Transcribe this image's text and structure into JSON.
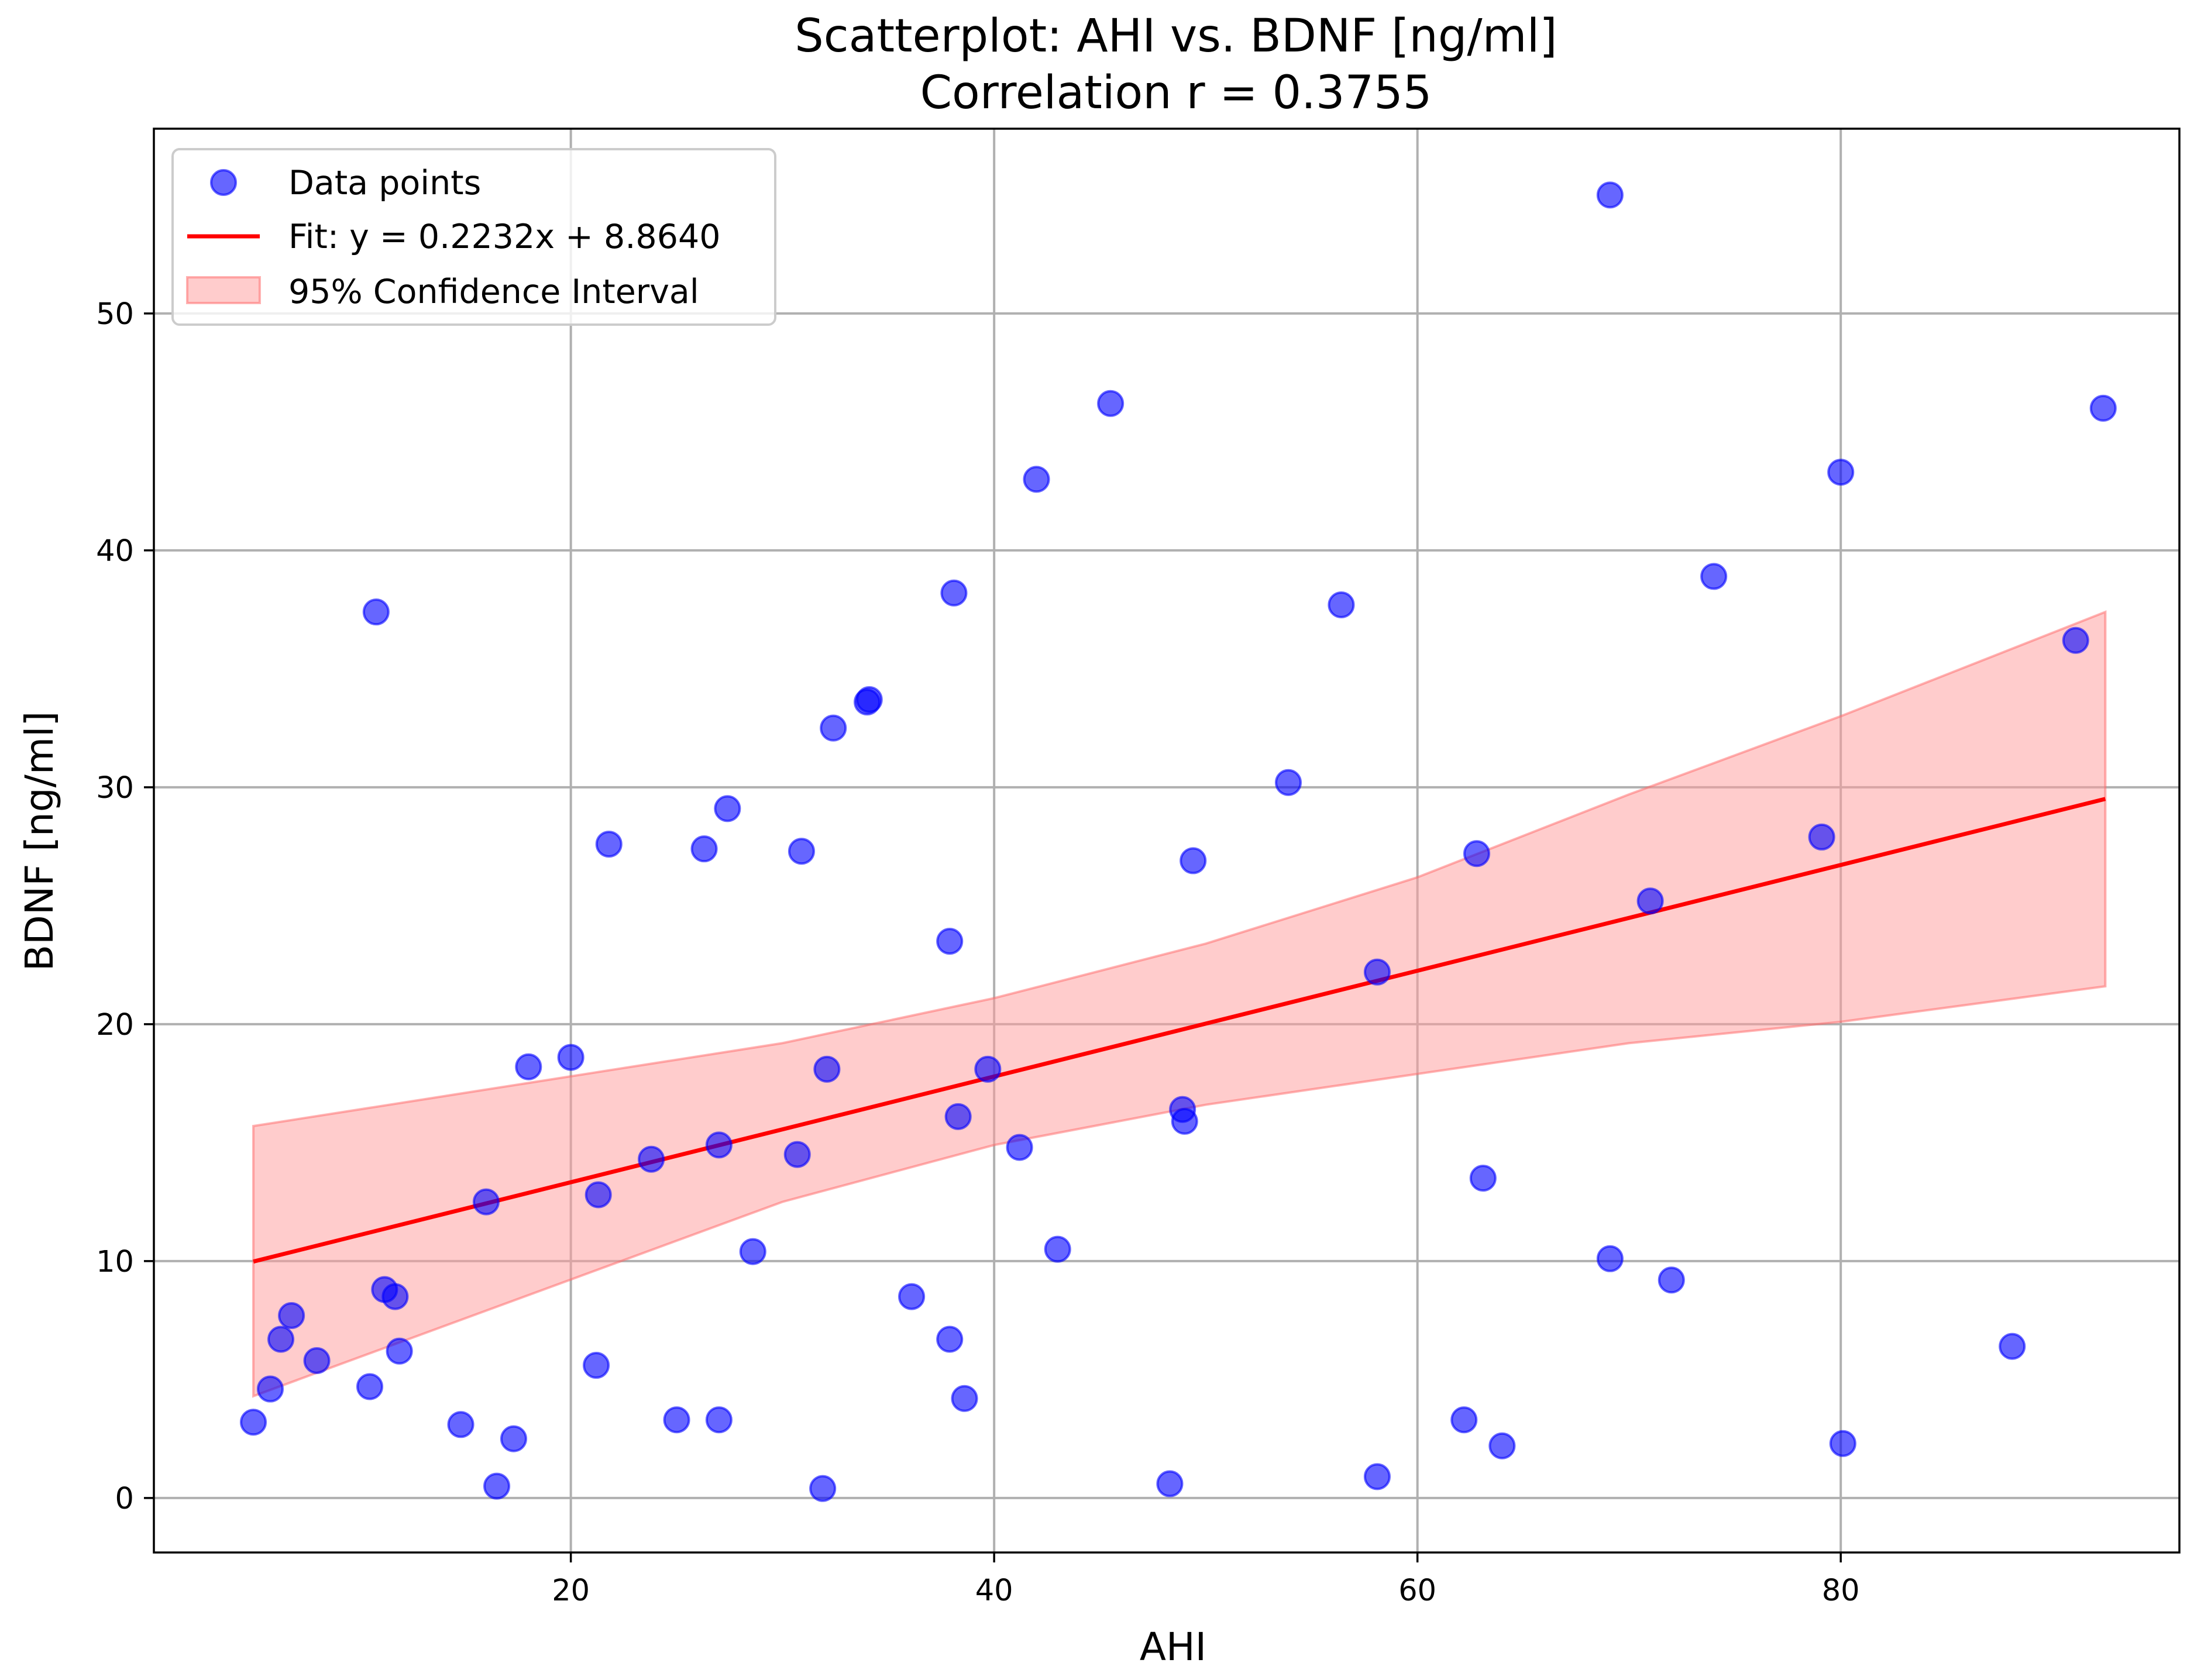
{
  "chart_data": {
    "type": "scatter",
    "title": "Scatterplot: AHI vs. BDNF [ng/ml]",
    "subtitle": "Correlation r = 0.3755",
    "xlabel": "AHI",
    "ylabel": "BDNF [ng/ml]",
    "xlim": [
      0.3,
      96.0
    ],
    "ylim": [
      -2.3,
      57.8
    ],
    "xticks": [
      20,
      40,
      60,
      80
    ],
    "yticks": [
      0,
      10,
      20,
      30,
      40,
      50
    ],
    "grid": true,
    "legend_position": "top-left",
    "legend": [
      {
        "label": "Data points",
        "kind": "marker"
      },
      {
        "label": "Fit: y = 0.2232x + 8.8640",
        "kind": "line"
      },
      {
        "label": "95% Confidence Interval",
        "kind": "patch"
      }
    ],
    "colors": {
      "points": "#0000ff",
      "fit": "#ff0000",
      "ci_fill": "#ff9999",
      "ci_edge": "#ff6666"
    },
    "fit": {
      "slope": 0.2232,
      "intercept": 8.864,
      "x_range": [
        5.0,
        92.5
      ]
    },
    "confidence_interval": {
      "x": [
        5.0,
        30.0,
        40.0,
        50.0,
        60.0,
        70.0,
        80.0,
        92.5
      ],
      "lower": [
        4.3,
        12.5,
        14.9,
        16.6,
        17.9,
        19.2,
        20.1,
        21.6
      ],
      "upper": [
        15.7,
        19.2,
        21.1,
        23.4,
        26.2,
        29.7,
        33.0,
        37.4
      ]
    },
    "points": [
      {
        "x": 5.0,
        "y": 3.2
      },
      {
        "x": 5.8,
        "y": 4.6
      },
      {
        "x": 6.3,
        "y": 6.7
      },
      {
        "x": 6.8,
        "y": 7.7
      },
      {
        "x": 8.0,
        "y": 5.8
      },
      {
        "x": 10.5,
        "y": 4.7
      },
      {
        "x": 10.8,
        "y": 37.4
      },
      {
        "x": 11.2,
        "y": 8.8
      },
      {
        "x": 11.7,
        "y": 8.5
      },
      {
        "x": 11.9,
        "y": 6.2
      },
      {
        "x": 14.8,
        "y": 3.1
      },
      {
        "x": 16.0,
        "y": 12.5
      },
      {
        "x": 16.5,
        "y": 0.5
      },
      {
        "x": 17.3,
        "y": 2.5
      },
      {
        "x": 18.0,
        "y": 18.2
      },
      {
        "x": 20.0,
        "y": 18.6
      },
      {
        "x": 21.2,
        "y": 5.6
      },
      {
        "x": 21.3,
        "y": 12.8
      },
      {
        "x": 21.8,
        "y": 27.6
      },
      {
        "x": 23.8,
        "y": 14.3
      },
      {
        "x": 25.0,
        "y": 3.3
      },
      {
        "x": 26.3,
        "y": 27.4
      },
      {
        "x": 27.0,
        "y": 14.9
      },
      {
        "x": 27.0,
        "y": 3.3
      },
      {
        "x": 27.4,
        "y": 29.1
      },
      {
        "x": 28.6,
        "y": 10.4
      },
      {
        "x": 30.7,
        "y": 14.5
      },
      {
        "x": 30.9,
        "y": 27.3
      },
      {
        "x": 31.9,
        "y": 0.4
      },
      {
        "x": 32.1,
        "y": 18.1
      },
      {
        "x": 32.4,
        "y": 32.5
      },
      {
        "x": 34.0,
        "y": 33.6
      },
      {
        "x": 34.1,
        "y": 33.7
      },
      {
        "x": 36.1,
        "y": 8.5
      },
      {
        "x": 37.9,
        "y": 23.5
      },
      {
        "x": 37.9,
        "y": 6.7
      },
      {
        "x": 38.1,
        "y": 38.2
      },
      {
        "x": 38.3,
        "y": 16.1
      },
      {
        "x": 38.6,
        "y": 4.2
      },
      {
        "x": 39.7,
        "y": 18.1
      },
      {
        "x": 41.2,
        "y": 14.8
      },
      {
        "x": 42.0,
        "y": 43.0
      },
      {
        "x": 43.0,
        "y": 10.5
      },
      {
        "x": 45.5,
        "y": 46.2
      },
      {
        "x": 48.3,
        "y": 0.6
      },
      {
        "x": 48.9,
        "y": 16.4
      },
      {
        "x": 49.0,
        "y": 15.9
      },
      {
        "x": 49.4,
        "y": 26.9
      },
      {
        "x": 53.9,
        "y": 30.2
      },
      {
        "x": 56.4,
        "y": 37.7
      },
      {
        "x": 58.1,
        "y": 22.2
      },
      {
        "x": 58.1,
        "y": 0.9
      },
      {
        "x": 62.2,
        "y": 3.3
      },
      {
        "x": 62.8,
        "y": 27.2
      },
      {
        "x": 63.1,
        "y": 13.5
      },
      {
        "x": 64.0,
        "y": 2.2
      },
      {
        "x": 69.1,
        "y": 55.0
      },
      {
        "x": 69.1,
        "y": 10.1
      },
      {
        "x": 71.0,
        "y": 25.2
      },
      {
        "x": 72.0,
        "y": 9.2
      },
      {
        "x": 74.0,
        "y": 38.9
      },
      {
        "x": 79.1,
        "y": 27.9
      },
      {
        "x": 80.0,
        "y": 43.3
      },
      {
        "x": 80.1,
        "y": 2.3
      },
      {
        "x": 88.1,
        "y": 6.4
      },
      {
        "x": 91.1,
        "y": 36.2
      },
      {
        "x": 92.4,
        "y": 46.0
      }
    ]
  }
}
